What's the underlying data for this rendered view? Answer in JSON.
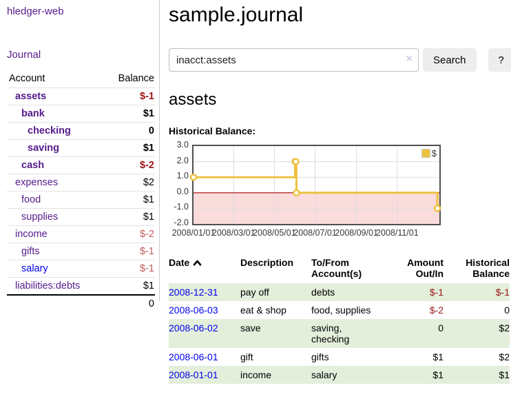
{
  "app": {
    "title": "hledger-web"
  },
  "colors": {
    "accent_purple": "#551a8b",
    "link_blue": "#0000ee",
    "negative_dark": "#991414",
    "negative_light": "#c05c5c",
    "row_stripe_green": "#e3eedb",
    "chart_series_gold": "#edc240"
  },
  "sidebar": {
    "journal_link": "Journal",
    "accounts_table": {
      "headers": {
        "account": "Account",
        "balance": "Balance"
      },
      "rows": [
        {
          "name": "assets",
          "depth": 1,
          "bold": true,
          "balance": "$-1",
          "balance_color": "negative"
        },
        {
          "name": "bank",
          "depth": 2,
          "bold": true,
          "balance": "$1",
          "balance_color": "normal"
        },
        {
          "name": "checking",
          "depth": 3,
          "bold": true,
          "balance": "0",
          "balance_color": "normal"
        },
        {
          "name": "saving",
          "depth": 3,
          "bold": true,
          "balance": "$1",
          "balance_color": "normal"
        },
        {
          "name": "cash",
          "depth": 2,
          "bold": true,
          "balance": "$-2",
          "balance_color": "negative"
        },
        {
          "name": "expenses",
          "depth": 1,
          "bold": false,
          "balance": "$2",
          "balance_color": "normal"
        },
        {
          "name": "food",
          "depth": 2,
          "bold": false,
          "balance": "$1",
          "balance_color": "normal"
        },
        {
          "name": "supplies",
          "depth": 2,
          "bold": false,
          "balance": "$1",
          "balance_color": "normal"
        },
        {
          "name": "income",
          "depth": 1,
          "bold": false,
          "balance": "$-2",
          "balance_color": "negative-light"
        },
        {
          "name": "gifts",
          "depth": 2,
          "bold": false,
          "balance": "$-1",
          "balance_color": "negative-light"
        },
        {
          "name": "salary",
          "depth": 2,
          "bold": false,
          "balance": "$-1",
          "balance_color": "negative-light",
          "link_color": "blue"
        },
        {
          "name": "liabilities:debts",
          "depth": 1,
          "bold": false,
          "balance": "$1",
          "balance_color": "normal"
        }
      ],
      "total": "0"
    }
  },
  "header": {
    "title": "sample.journal"
  },
  "search": {
    "value": "inacct:assets",
    "clear_icon": "×",
    "button_label": "Search",
    "help_label": "?"
  },
  "account_page": {
    "heading": "assets",
    "chart_label": "Historical Balance:"
  },
  "chart_data": {
    "type": "line",
    "step": true,
    "title": "Historical Balance",
    "series": [
      {
        "name": "$",
        "color": "#edc240",
        "points": [
          [
            "2008-01-01",
            1
          ],
          [
            "2008-06-01",
            2
          ],
          [
            "2008-06-02",
            2
          ],
          [
            "2008-06-03",
            0
          ],
          [
            "2008-12-31",
            -1
          ]
        ]
      }
    ],
    "ylim": [
      -2,
      3
    ],
    "yticks": [
      {
        "value": 3,
        "label": "3.0"
      },
      {
        "value": 2,
        "label": "2.0"
      },
      {
        "value": 1,
        "label": "1.0"
      },
      {
        "value": 0,
        "label": "0.0"
      },
      {
        "value": -1,
        "label": "-1.0"
      },
      {
        "value": -2,
        "label": "-2.0"
      }
    ],
    "xticks": [
      {
        "date": "2008-01-01",
        "label": "2008/01/01"
      },
      {
        "date": "2008-03-01",
        "label": "2008/03/01"
      },
      {
        "date": "2008-05-01",
        "label": "2008/05/01"
      },
      {
        "date": "2008-07-01",
        "label": "2008/07/01"
      },
      {
        "date": "2008-09-01",
        "label": "2008/09/01"
      },
      {
        "date": "2008-11-01",
        "label": "2008/11/01"
      }
    ],
    "x_domain": [
      "2008-01-01",
      "2009-01-03"
    ],
    "legend": {
      "position": "top-right",
      "label": "$"
    },
    "grid": true,
    "gridline_color": "#dcdcdc",
    "negative_region_color": "#fbdcdc",
    "zero_line_color": "#a40000"
  },
  "transactions": {
    "headers": {
      "date": "Date",
      "description": "Description",
      "accounts": "To/From\nAccount(s)",
      "amount": "Amount\nOut/In",
      "balance": "Historical\nBalance"
    },
    "sort": {
      "column": "date",
      "direction": "ascending"
    },
    "rows": [
      {
        "date": "2008-12-31",
        "description": "pay off",
        "accounts": "debts",
        "amount": "$-1",
        "amount_negative": true,
        "balance": "$-1",
        "balance_negative": true
      },
      {
        "date": "2008-06-03",
        "description": "eat & shop",
        "accounts": "food, supplies",
        "amount": "$-2",
        "amount_negative": true,
        "balance": "0",
        "balance_negative": false
      },
      {
        "date": "2008-06-02",
        "description": "save",
        "accounts": "saving,\nchecking",
        "amount": "0",
        "amount_negative": false,
        "balance": "$2",
        "balance_negative": false
      },
      {
        "date": "2008-06-01",
        "description": "gift",
        "accounts": "gifts",
        "amount": "$1",
        "amount_negative": false,
        "balance": "$2",
        "balance_negative": false
      },
      {
        "date": "2008-01-01",
        "description": "income",
        "accounts": "salary",
        "amount": "$1",
        "amount_negative": false,
        "balance": "$1",
        "balance_negative": false
      }
    ]
  }
}
